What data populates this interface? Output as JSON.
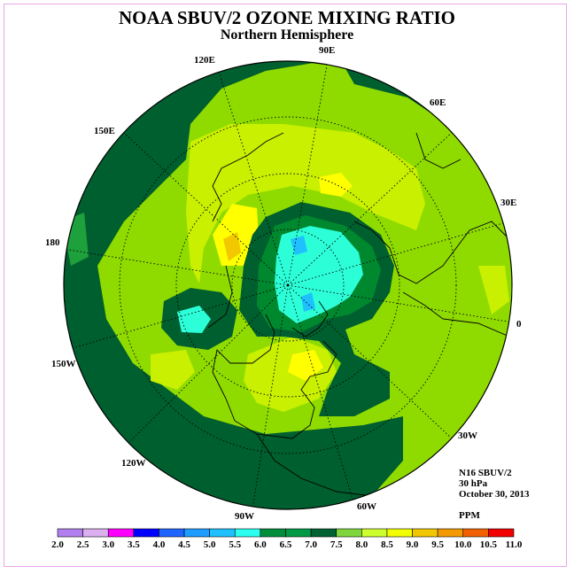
{
  "title": "NOAA SBUV/2 OZONE MIXING RATIO",
  "subtitle": "Northern Hemisphere",
  "longitude_labels": {
    "e90": "90E",
    "e60": "60E",
    "e30": "30E",
    "zero": "0",
    "w30": "30W",
    "w60": "60W",
    "w90": "90W",
    "w120": "120W",
    "w150": "150W",
    "d180": "180",
    "e150": "150E",
    "e120": "120E"
  },
  "info": {
    "instrument": "N16 SBUV/2",
    "level": "30 hPa",
    "date": "October 30, 2013",
    "units": "PPM"
  },
  "colorbar": {
    "labels": [
      "2.0",
      "2.5",
      "3.0",
      "3.5",
      "4.0",
      "4.5",
      "5.0",
      "5.5",
      "6.0",
      "6.5",
      "7.0",
      "7.5",
      "8.0",
      "8.5",
      "9.0",
      "9.5",
      "10.0",
      "10.5",
      "11.0"
    ],
    "colors": [
      "#b27ff0",
      "#dcb0f0",
      "#ff00ff",
      "#0000ff",
      "#1e64ff",
      "#1e9cff",
      "#1ec0ff",
      "#2cfff0",
      "#008d3c",
      "#009a46",
      "#006132",
      "#7fd63c",
      "#cdff2e",
      "#f2ff00",
      "#f2c600",
      "#f29a00",
      "#f26100",
      "#f20000",
      "#8b5a37"
    ]
  },
  "map_colors": {
    "c60": "#00882f",
    "c65": "#1ea03c",
    "c70": "#005f2e",
    "c75": "#8fdb00",
    "c80": "#c8f000",
    "c85": "#ffff00",
    "c90": "#f2c800",
    "c55": "#2cffd8",
    "c50": "#1ec0ff",
    "coast": "#000000"
  }
}
